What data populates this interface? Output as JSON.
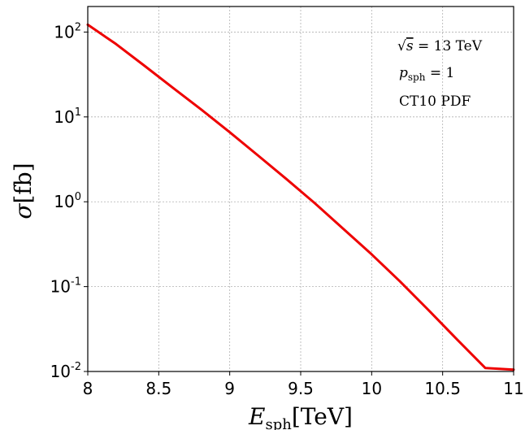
{
  "chart_data": {
    "type": "line",
    "xlim": [
      8,
      11
    ],
    "ylim": [
      0.01,
      200
    ],
    "yscale": "log",
    "grid": true,
    "xticks": [
      {
        "value": 8,
        "label": "8"
      },
      {
        "value": 8.5,
        "label": "8.5"
      },
      {
        "value": 9,
        "label": "9"
      },
      {
        "value": 9.5,
        "label": "9.5"
      },
      {
        "value": 10,
        "label": "10"
      },
      {
        "value": 10.5,
        "label": "10.5"
      },
      {
        "value": 11,
        "label": "11"
      }
    ],
    "yticks": [
      {
        "value": 100,
        "base": "10",
        "exp": "2"
      },
      {
        "value": 10,
        "base": "10",
        "exp": "1"
      },
      {
        "value": 1,
        "base": "10",
        "exp": "0"
      },
      {
        "value": 0.1,
        "base": "10",
        "exp": "-1"
      },
      {
        "value": 0.01,
        "base": "10",
        "exp": "-2"
      }
    ],
    "xlabel": {
      "main": "E",
      "sub": "sph",
      "unit": "[TeV]"
    },
    "ylabel": {
      "main": "σ",
      "unit": "[fb]"
    },
    "annotations": {
      "line1_prefix": "√",
      "line1_var": "s",
      "line1_rest": " = 13 TeV",
      "line2_var": "p",
      "line2_sub": "sph",
      "line2_rest": " = 1",
      "line3": "CT10 PDF"
    },
    "series": [
      {
        "color": "#ee0000",
        "x": [
          8.0,
          8.2,
          8.4,
          8.6,
          8.8,
          9.0,
          9.2,
          9.4,
          9.6,
          9.8,
          10.0,
          10.2,
          10.4,
          10.6,
          10.8,
          11.0
        ],
        "y": [
          122,
          72,
          40,
          22,
          12.2,
          6.6,
          3.5,
          1.85,
          0.96,
          0.48,
          0.24,
          0.115,
          0.053,
          0.024,
          0.011,
          0.0105
        ]
      }
    ]
  }
}
